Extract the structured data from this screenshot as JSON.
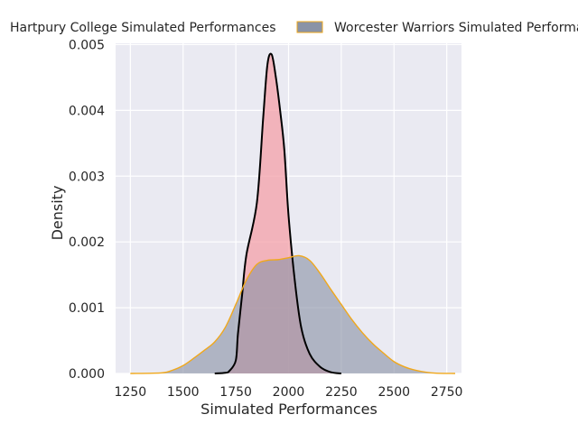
{
  "chart_data": {
    "type": "area",
    "xlabel": "Simulated Performances",
    "ylabel": "Density",
    "xlim": [
      1180,
      2820
    ],
    "ylim": [
      0,
      0.00502
    ],
    "xticks": [
      1250,
      1500,
      1750,
      2000,
      2250,
      2500,
      2750
    ],
    "yticks": [
      0.0,
      0.001,
      0.002,
      0.003,
      0.004,
      0.005
    ],
    "ytick_labels": [
      "0.000",
      "0.001",
      "0.002",
      "0.003",
      "0.004",
      "0.005"
    ],
    "grid": true,
    "legend_placement": "top",
    "series": [
      {
        "name": "Hartpury College Simulated Performances",
        "fill_color": "#f4a0a8",
        "line_color": "#000000",
        "x": [
          1650,
          1700,
          1720,
          1750,
          1760,
          1780,
          1800,
          1850,
          1880,
          1900,
          1920,
          1940,
          1960,
          1980,
          2000,
          2030,
          2060,
          2100,
          2150,
          2200,
          2250
        ],
        "y": [
          0.0,
          1e-05,
          4e-05,
          0.0002,
          0.0006,
          0.0012,
          0.0018,
          0.0026,
          0.0039,
          0.0047,
          0.00485,
          0.0045,
          0.004,
          0.0034,
          0.0024,
          0.0014,
          0.0007,
          0.0003,
          0.0001,
          2e-05,
          0.0
        ]
      },
      {
        "name": "Worcester Warriors Simulated Performances",
        "fill_color": "#8a93a6",
        "line_color": "#f0a81c",
        "x": [
          1250,
          1400,
          1450,
          1500,
          1550,
          1600,
          1650,
          1700,
          1750,
          1800,
          1850,
          1900,
          1950,
          2000,
          2050,
          2100,
          2150,
          2200,
          2250,
          2300,
          2350,
          2400,
          2450,
          2500,
          2550,
          2600,
          2650,
          2700,
          2790
        ],
        "y": [
          0.0,
          1e-05,
          5e-05,
          0.00012,
          0.00023,
          0.00035,
          0.00048,
          0.0007,
          0.00105,
          0.00142,
          0.00166,
          0.00172,
          0.00173,
          0.00176,
          0.00179,
          0.00172,
          0.00152,
          0.00128,
          0.00105,
          0.00082,
          0.00062,
          0.00045,
          0.00031,
          0.00018,
          0.0001,
          5e-05,
          2e-05,
          5e-06,
          0.0
        ]
      }
    ]
  }
}
